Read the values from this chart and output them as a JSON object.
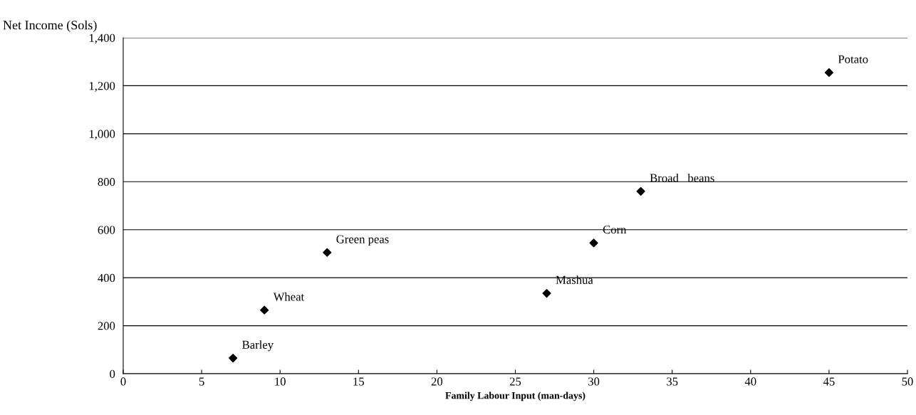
{
  "chart_data": {
    "type": "scatter",
    "xlabel": "Family Labour Input (man-days)",
    "ylabel": "Net Income (Sols)",
    "series": [
      {
        "color": "#000000",
        "x": [
          7,
          9,
          13,
          27,
          30,
          33,
          45
        ],
        "values": [
          65,
          265,
          505,
          335,
          545,
          760,
          1255
        ]
      }
    ],
    "marker": "diamond",
    "grid": "y",
    "xlim": [
      0,
      50
    ],
    "xticks": [
      0,
      5,
      10,
      15,
      20,
      25,
      30,
      35,
      40,
      45,
      50
    ],
    "ylim": [
      0,
      1400
    ],
    "yticks": [
      {
        "value": 0,
        "label": "0"
      },
      {
        "value": 200,
        "label": "200"
      },
      {
        "value": 400,
        "label": "400"
      },
      {
        "value": 600,
        "label": "600"
      },
      {
        "value": 800,
        "label": "800"
      },
      {
        "value": 1000,
        "label": "1,000"
      },
      {
        "value": 1200,
        "label": "1,200"
      },
      {
        "value": 1400,
        "label": "1,400"
      }
    ],
    "annotations": [
      {
        "text": "Barley",
        "x": 7,
        "y": 65
      },
      {
        "text": "Wheat",
        "x": 9,
        "y": 265
      },
      {
        "text": "Green peas",
        "x": 13,
        "y": 505
      },
      {
        "text": "Mashua",
        "x": 27,
        "y": 335
      },
      {
        "text": "Corn",
        "x": 30,
        "y": 545
      },
      {
        "text": "Broad   beans",
        "x": 33,
        "y": 760
      },
      {
        "text": "Potato",
        "x": 45,
        "y": 1255
      }
    ]
  }
}
